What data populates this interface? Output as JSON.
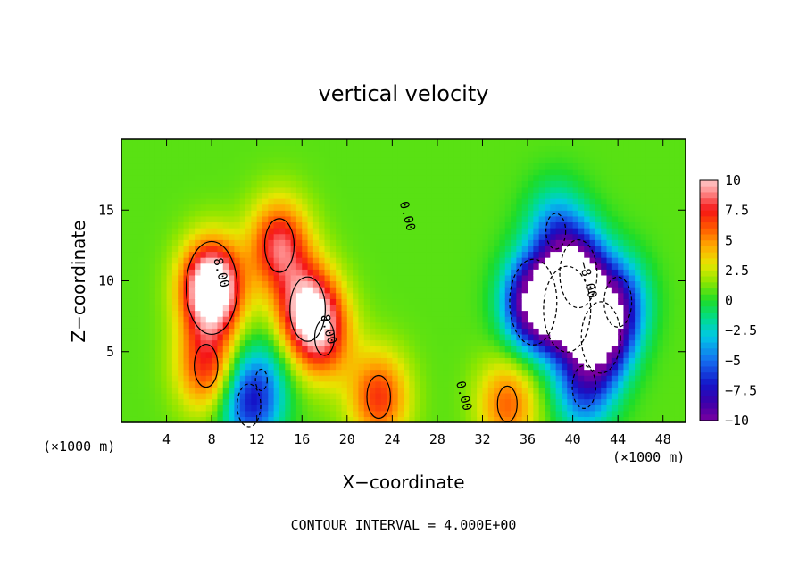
{
  "chart_data": {
    "type": "heatmap",
    "title": "vertical velocity",
    "xlabel": "X−coordinate",
    "ylabel": "Z−coordinate",
    "x_unit": "(×1000 m)",
    "x_unit_right": "(×1000 m)",
    "footer": "CONTOUR INTERVAL = 4.000E+00",
    "xlim": [
      0,
      50
    ],
    "ylim": [
      0,
      20
    ],
    "x_ticks": [
      "4",
      "8",
      "12",
      "16",
      "20",
      "24",
      "28",
      "32",
      "36",
      "40",
      "44",
      "48"
    ],
    "x_tick_values": [
      4,
      8,
      12,
      16,
      20,
      24,
      28,
      32,
      36,
      40,
      44,
      48
    ],
    "y_ticks": [
      "5",
      "10",
      "15"
    ],
    "y_tick_values": [
      5,
      10,
      15
    ],
    "colorbar": {
      "range": [
        -10,
        10
      ],
      "tick_labels": [
        "10",
        "7.5",
        "5",
        "2.5",
        "0",
        "−2.5",
        "−5",
        "−7.5",
        "−10"
      ],
      "tick_values": [
        10,
        7.5,
        5,
        2.5,
        0,
        -2.5,
        -5,
        -7.5,
        -10
      ]
    },
    "contour_interval": 4.0,
    "contour_labels": [
      {
        "text": "8.00",
        "x": 8.5,
        "z": 10.5
      },
      {
        "text": "8.00",
        "x": 18.0,
        "z": 6.5
      },
      {
        "text": "0.00",
        "x": 25.0,
        "z": 14.5
      },
      {
        "text": "0.00",
        "x": 30.0,
        "z": 1.8
      },
      {
        "text": "−8.00",
        "x": 41.0,
        "z": 10.0
      }
    ],
    "features": [
      {
        "x": 8.0,
        "z": 9.5,
        "w": 13.0
      },
      {
        "x": 7.5,
        "z": 4.0,
        "w": 6.0
      },
      {
        "x": 14.0,
        "z": 12.5,
        "w": 7.5
      },
      {
        "x": 16.5,
        "z": 8.0,
        "w": 9.0
      },
      {
        "x": 18.0,
        "z": 6.0,
        "w": 5.0
      },
      {
        "x": 22.8,
        "z": 1.8,
        "w": 6.0
      },
      {
        "x": 34.2,
        "z": 1.3,
        "w": 5.0
      },
      {
        "x": 11.3,
        "z": 1.2,
        "w": -6.0
      },
      {
        "x": 12.4,
        "z": 3.0,
        "w": -3.0
      },
      {
        "x": 36.5,
        "z": 8.5,
        "w": -12.0
      },
      {
        "x": 39.5,
        "z": 8.0,
        "w": -12.0
      },
      {
        "x": 40.5,
        "z": 10.5,
        "w": -9.5
      },
      {
        "x": 42.5,
        "z": 6.0,
        "w": -10.0
      },
      {
        "x": 44.0,
        "z": 8.5,
        "w": -7.0
      },
      {
        "x": 41.0,
        "z": 2.5,
        "w": -6.0
      },
      {
        "x": 38.5,
        "z": 13.5,
        "w": -5.0
      }
    ]
  }
}
